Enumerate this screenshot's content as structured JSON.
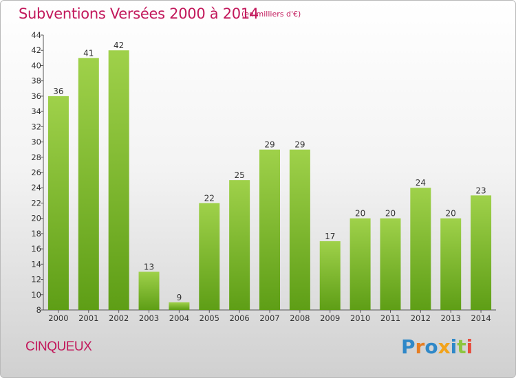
{
  "header": {
    "title": "Subventions Versées 2000 à 2014",
    "subtitle": "(en milliers d'€)"
  },
  "footer": {
    "town": "CINQUEUX",
    "logo_text": "Proxiti"
  },
  "colors": {
    "title": "#c2185b",
    "bar_top": "#9fd14a",
    "bar_bottom": "#5e9e16",
    "logo_letters": [
      "#2f88c8",
      "#e67e22",
      "#2f88c8",
      "#f2a31b",
      "#2f88c8",
      "#8dc63f",
      "#e74c3c"
    ]
  },
  "chart_data": {
    "type": "bar",
    "title": "Subventions Versées 2000 à 2014",
    "subtitle": "(en milliers d'€)",
    "categories": [
      "2000",
      "2001",
      "2002",
      "2003",
      "2004",
      "2005",
      "2006",
      "2007",
      "2008",
      "2009",
      "2010",
      "2011",
      "2012",
      "2013",
      "2014"
    ],
    "values": [
      36,
      41,
      42,
      13,
      9,
      22,
      25,
      29,
      29,
      17,
      20,
      20,
      24,
      20,
      23
    ],
    "ylim": [
      8,
      44
    ],
    "yticks": [
      8,
      10,
      12,
      14,
      16,
      18,
      20,
      22,
      24,
      26,
      28,
      30,
      32,
      34,
      36,
      38,
      40,
      42,
      44
    ],
    "grid": false,
    "data_labels": true
  }
}
